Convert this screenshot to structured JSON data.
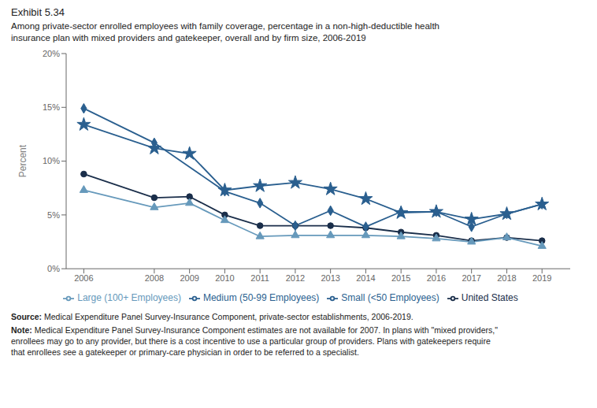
{
  "chart_data": {
    "type": "line",
    "title": "Exhibit 5.34",
    "subtitle": "Among private-sector enrolled employees with family coverage, percentage in a non-high-deductible health\ninsurance plan with mixed providers and gatekeeper, overall and by firm size, 2006-2019",
    "y_label": "Percent",
    "x": [
      2006,
      2008,
      2009,
      2010,
      2011,
      2012,
      2013,
      2014,
      2015,
      2016,
      2017,
      2018,
      2019
    ],
    "series": [
      {
        "name": "United States",
        "color": "#1a2e4a",
        "marker": "circle",
        "values": [
          8.8,
          6.6,
          6.7,
          5.0,
          4.0,
          4.0,
          4.0,
          3.8,
          3.4,
          3.1,
          2.6,
          2.9,
          2.6
        ]
      },
      {
        "name": "Small (<50 Employees)",
        "color": "#2a5f8f",
        "marker": "star",
        "values": [
          13.4,
          11.2,
          10.7,
          7.3,
          7.7,
          8.0,
          7.4,
          6.5,
          5.2,
          5.3,
          4.6,
          5.1,
          6.0
        ]
      },
      {
        "name": "Medium (50-99 Employees)",
        "color": "#2a5f8f",
        "marker": "diamond",
        "values": [
          14.9,
          11.7,
          null,
          7.2,
          6.1,
          4.0,
          5.4,
          3.9,
          5.3,
          5.3,
          3.9,
          5.1,
          6.0
        ]
      },
      {
        "name": "Large (100+ Employees)",
        "color": "#6699bb",
        "marker": "triangle",
        "values": [
          7.3,
          5.7,
          6.1,
          4.5,
          3.0,
          3.1,
          3.1,
          3.1,
          3.0,
          2.8,
          2.5,
          2.9,
          2.1
        ]
      }
    ],
    "xlim": [
      2005.5,
      2019.8
    ],
    "xticks": [
      2006,
      2008,
      2009,
      2010,
      2011,
      2012,
      2013,
      2014,
      2015,
      2016,
      2017,
      2018,
      2019
    ],
    "ylim": [
      0,
      20
    ],
    "yticks": [
      {
        "value": 0,
        "label": "0%"
      },
      {
        "value": 5,
        "label": "5%"
      },
      {
        "value": 10,
        "label": "10%"
      },
      {
        "value": 15,
        "label": "15%"
      },
      {
        "value": 20,
        "label": "20%"
      }
    ],
    "grid": false,
    "legend": "bottom",
    "annotations": [
      "Source: Medical Expenditure Panel Survey-Insurance Component, private-sector establishments, 2006-2019.",
      "Note: Medical Expenditure Panel Survey-Insurance Component estimates are not available for 2007. In plans with \"mixed providers,\"\nenrollees may go to any provider, but there is a cost incentive to use a particular group of providers. Plans with gatekeepers require\nthat enrollees see a gatekeeper or primary-care physician in order to be referred to a specialist."
    ]
  }
}
